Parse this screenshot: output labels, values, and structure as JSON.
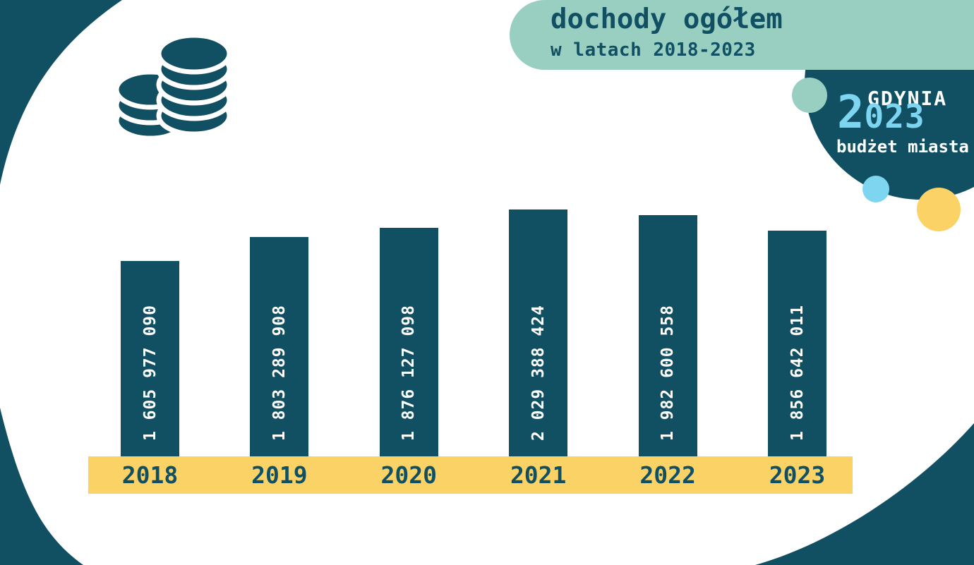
{
  "header": {
    "title": "dochody ogółem",
    "subtitle": "w latach 2018-2023"
  },
  "logo": {
    "city": "GDYNIA",
    "year_big_digit": "2",
    "year_rest": "023",
    "caption": "budżet miasta"
  },
  "icons": {
    "header_icon": "coins-icon"
  },
  "chart_data": {
    "type": "bar",
    "categories": [
      "2018",
      "2019",
      "2020",
      "2021",
      "2022",
      "2023"
    ],
    "values": [
      1605977090,
      1803289908,
      1876127098,
      2029388424,
      1982600558,
      1856642011
    ],
    "value_labels": [
      "1 605 977 090",
      "1 803 289 908",
      "1 876 127 098",
      "2 029 388 424",
      "1 982 600 558",
      "1 856 642 011"
    ],
    "title": "dochody ogółem",
    "subtitle": "w latach 2018-2023",
    "xlabel": "",
    "ylabel": "",
    "ylim": [
      0,
      2029388424
    ],
    "grid": false,
    "legend": false,
    "value_labels_rotated": true,
    "bar_color": "#114f63",
    "value_label_color": "#ffffff",
    "axis_band_color": "#fbd265",
    "label_color": "#114f63"
  },
  "colors": {
    "dark_teal": "#114f63",
    "mint": "#99cfc1",
    "light_blue": "#7ed5f0",
    "yellow": "#fbd265",
    "white": "#ffffff"
  }
}
